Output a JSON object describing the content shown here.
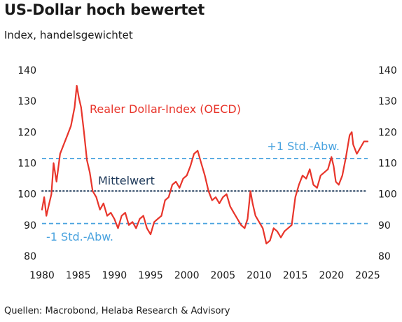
{
  "header": {
    "title": "US-Dollar hoch bewertet",
    "subtitle": "Index, handelsgewichtet"
  },
  "footer": {
    "source": "Quellen: Macrobond, Helaba Research & Advisory"
  },
  "colors": {
    "series": "#e8352b",
    "mean": "#1f3a5a",
    "band": "#4aa3df",
    "text": "#1a1a1a"
  },
  "chart_data": {
    "type": "line",
    "title": "US-Dollar hoch bewertet",
    "subtitle": "Index, handelsgewichtet",
    "xlim": [
      1980,
      2025
    ],
    "ylim": [
      80,
      140
    ],
    "x_ticks": [
      "1980",
      "1985",
      "1990",
      "1995",
      "2000",
      "2005",
      "2010",
      "2015",
      "2020",
      "2025"
    ],
    "y_ticks": [
      "80",
      "90",
      "100",
      "110",
      "120",
      "130",
      "140"
    ],
    "y_ticks_right": [
      "80",
      "90",
      "100",
      "110",
      "120",
      "130",
      "140"
    ],
    "grid": false,
    "series": [
      {
        "name": "Realer Dollar-Index (OECD)",
        "x": [
          1980.0,
          1980.3,
          1980.6,
          1981.0,
          1981.3,
          1981.6,
          1982.0,
          1982.5,
          1983.0,
          1983.5,
          1984.0,
          1984.5,
          1984.8,
          1985.1,
          1985.4,
          1985.8,
          1986.2,
          1986.6,
          1987.0,
          1987.5,
          1988.0,
          1988.5,
          1989.0,
          1989.5,
          1990.0,
          1990.5,
          1991.0,
          1991.5,
          1992.0,
          1992.5,
          1993.0,
          1993.5,
          1994.0,
          1994.5,
          1995.0,
          1995.5,
          1996.0,
          1996.5,
          1997.0,
          1997.5,
          1998.0,
          1998.5,
          1999.0,
          1999.5,
          2000.0,
          2000.5,
          2001.0,
          2001.5,
          2002.0,
          2002.5,
          2003.0,
          2003.5,
          2004.0,
          2004.5,
          2005.0,
          2005.5,
          2006.0,
          2006.5,
          2007.0,
          2007.5,
          2008.0,
          2008.4,
          2008.8,
          2009.1,
          2009.5,
          2010.0,
          2010.5,
          2011.0,
          2011.5,
          2012.0,
          2012.5,
          2013.0,
          2013.5,
          2014.0,
          2014.5,
          2015.0,
          2015.5,
          2016.0,
          2016.5,
          2017.0,
          2017.5,
          2018.0,
          2018.5,
          2019.0,
          2019.5,
          2020.0,
          2020.3,
          2020.6,
          2021.0,
          2021.5,
          2022.0,
          2022.5,
          2022.8,
          2023.0,
          2023.5,
          2024.0,
          2024.5,
          2025.0
        ],
        "values": [
          95,
          99,
          93,
          97,
          100,
          110,
          104,
          113,
          116,
          119,
          122,
          128,
          135,
          131,
          128,
          120,
          111,
          107,
          101,
          99,
          95,
          97,
          93,
          94,
          92,
          89,
          93,
          94,
          90,
          91,
          89,
          92,
          93,
          89,
          87,
          91,
          92,
          93,
          98,
          99,
          103,
          104,
          102,
          105,
          106,
          109,
          113,
          114,
          110,
          106,
          101,
          98,
          99,
          97,
          99,
          100,
          96,
          94,
          92,
          90,
          89,
          92,
          101,
          97,
          93,
          91,
          89,
          84,
          85,
          89,
          88,
          86,
          88,
          89,
          90,
          99,
          103,
          106,
          105,
          108,
          103,
          102,
          106,
          107,
          108,
          112,
          109,
          104,
          103,
          106,
          112,
          119,
          120,
          116,
          113,
          115,
          117,
          117
        ],
        "color": "#e8352b"
      }
    ],
    "reference_lines": [
      {
        "label": "+1 Std.-Abw.",
        "y": 111.5,
        "style": "dashed",
        "color": "#4aa3df"
      },
      {
        "label": "Mittelwert",
        "y": 101,
        "style": "dotted",
        "color": "#1f3a5a"
      },
      {
        "label": "-1 Std.-Abw.",
        "y": 90.5,
        "style": "dashed",
        "color": "#4aa3df"
      }
    ]
  }
}
